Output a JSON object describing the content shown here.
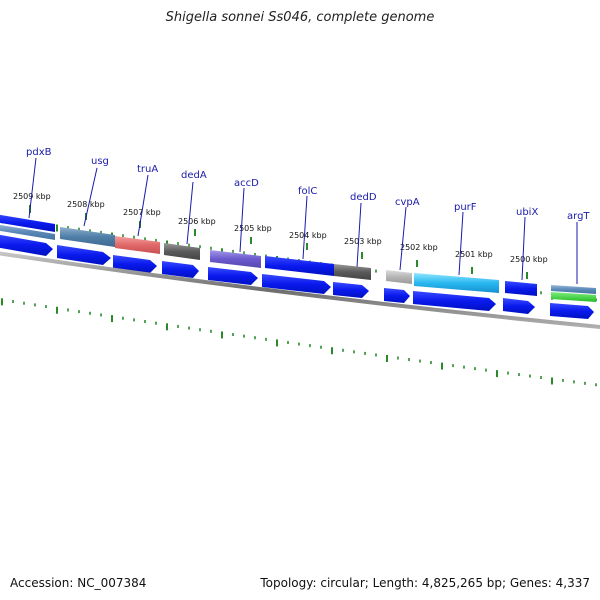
{
  "title": "Shigella sonnei Ss046, complete genome",
  "footer": {
    "accession": "Accession: NC_007384",
    "topology": "Topology: circular; Length: 4,825,265 bp; Genes: 4,337"
  },
  "colors": {
    "cds_forward": "#0a1aee",
    "backbone": "#888888",
    "gene_label": "#1a1aaa",
    "ticks": "#2a8a2a"
  },
  "kbp_labels": [
    "2509 kbp",
    "2508 kbp",
    "2507 kbp",
    "2506 kbp",
    "2505 kbp",
    "2504 kbp",
    "2503 kbp",
    "2502 kbp",
    "2501 kbp",
    "2500 kbp"
  ],
  "genes": [
    "pdxB",
    "usg",
    "truA",
    "dedA",
    "accD",
    "folC",
    "dedD",
    "cvpA",
    "purF",
    "ubiX",
    "argT"
  ]
}
